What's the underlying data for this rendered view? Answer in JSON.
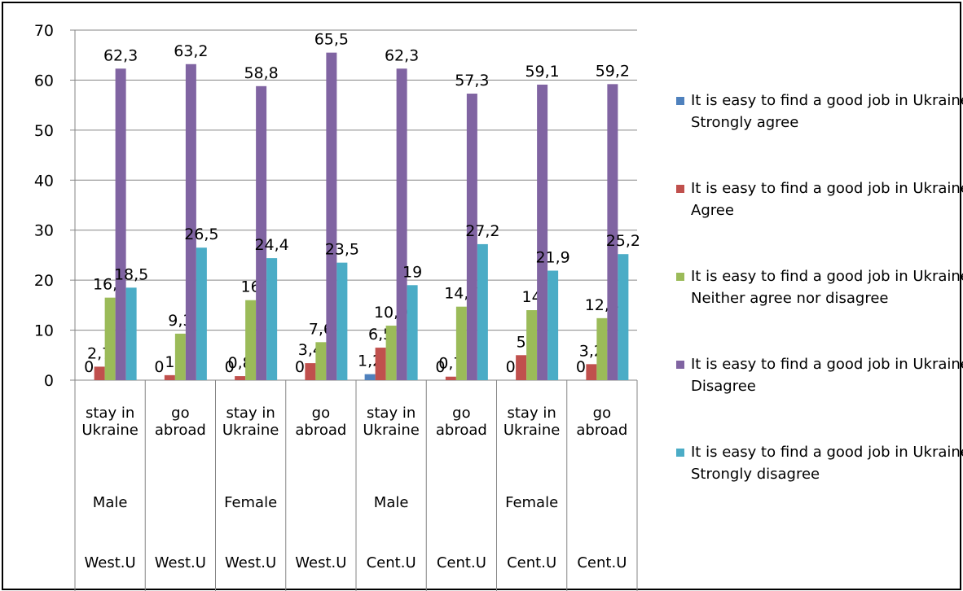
{
  "chart_data": {
    "type": "bar",
    "categories": [
      "stay in Ukraine",
      "go abroad",
      "stay in Ukraine",
      "go abroad",
      "stay in Ukraine",
      "go abroad",
      "stay in Ukraine",
      "go abroad"
    ],
    "genders": [
      "Male",
      null,
      "Female",
      null,
      "Male",
      null,
      "Female",
      null
    ],
    "regions": [
      "West.U",
      "West.U",
      "West.U",
      "West.U",
      "Cent.U",
      "Cent.U",
      "Cent.U",
      "Cent.U"
    ],
    "series": [
      {
        "name": "It is easy to find a good job in Ukraine  Strongly agree",
        "color": "#4f81bd",
        "values": [
          0,
          0,
          0,
          0,
          1.2,
          0,
          0,
          0
        ],
        "value_labels": [
          "0",
          "0",
          "0",
          "0",
          "1,2",
          "0",
          "0",
          "0"
        ]
      },
      {
        "name": "It is easy to find a good job in Ukraine  Agree",
        "color": "#c0504d",
        "values": [
          2.7,
          1,
          0.8,
          3.4,
          6.5,
          0.7,
          5,
          3.2
        ],
        "value_labels": [
          "2,7",
          "1",
          "0,8",
          "3,4",
          "6,5",
          "0,7",
          "5",
          "3,2"
        ]
      },
      {
        "name": "It is easy to find a good job in Ukraine  Neither agree nor disagree",
        "color": "#9bbb59",
        "values": [
          16.5,
          9.3,
          16,
          7.6,
          10.9,
          14.7,
          14,
          12.4
        ],
        "value_labels": [
          "16,5",
          "9,3",
          "16",
          "7,6",
          "10,9",
          "14,7",
          "14",
          "12,4"
        ]
      },
      {
        "name": "It is easy to find a good job in Ukraine  Disagree",
        "color": "#8064a2",
        "values": [
          62.3,
          63.2,
          58.8,
          65.5,
          62.3,
          57.3,
          59.1,
          59.2
        ],
        "value_labels": [
          "62,3",
          "63,2",
          "58,8",
          "65,5",
          "62,3",
          "57,3",
          "59,1",
          "59,2"
        ]
      },
      {
        "name": "It is easy to find a good job in Ukraine  Strongly disagree",
        "color": "#4bacc6",
        "values": [
          18.5,
          26.5,
          24.4,
          23.5,
          19,
          27.2,
          21.9,
          25.2
        ],
        "value_labels": [
          "18,5",
          "26,5",
          "24,4",
          "23,5",
          "19",
          "27,2",
          "21,9",
          "25,2"
        ]
      }
    ],
    "ylim": [
      0,
      70
    ],
    "yticks": [
      0,
      10,
      20,
      30,
      40,
      50,
      60,
      70
    ],
    "grid": true,
    "legend": "right"
  }
}
